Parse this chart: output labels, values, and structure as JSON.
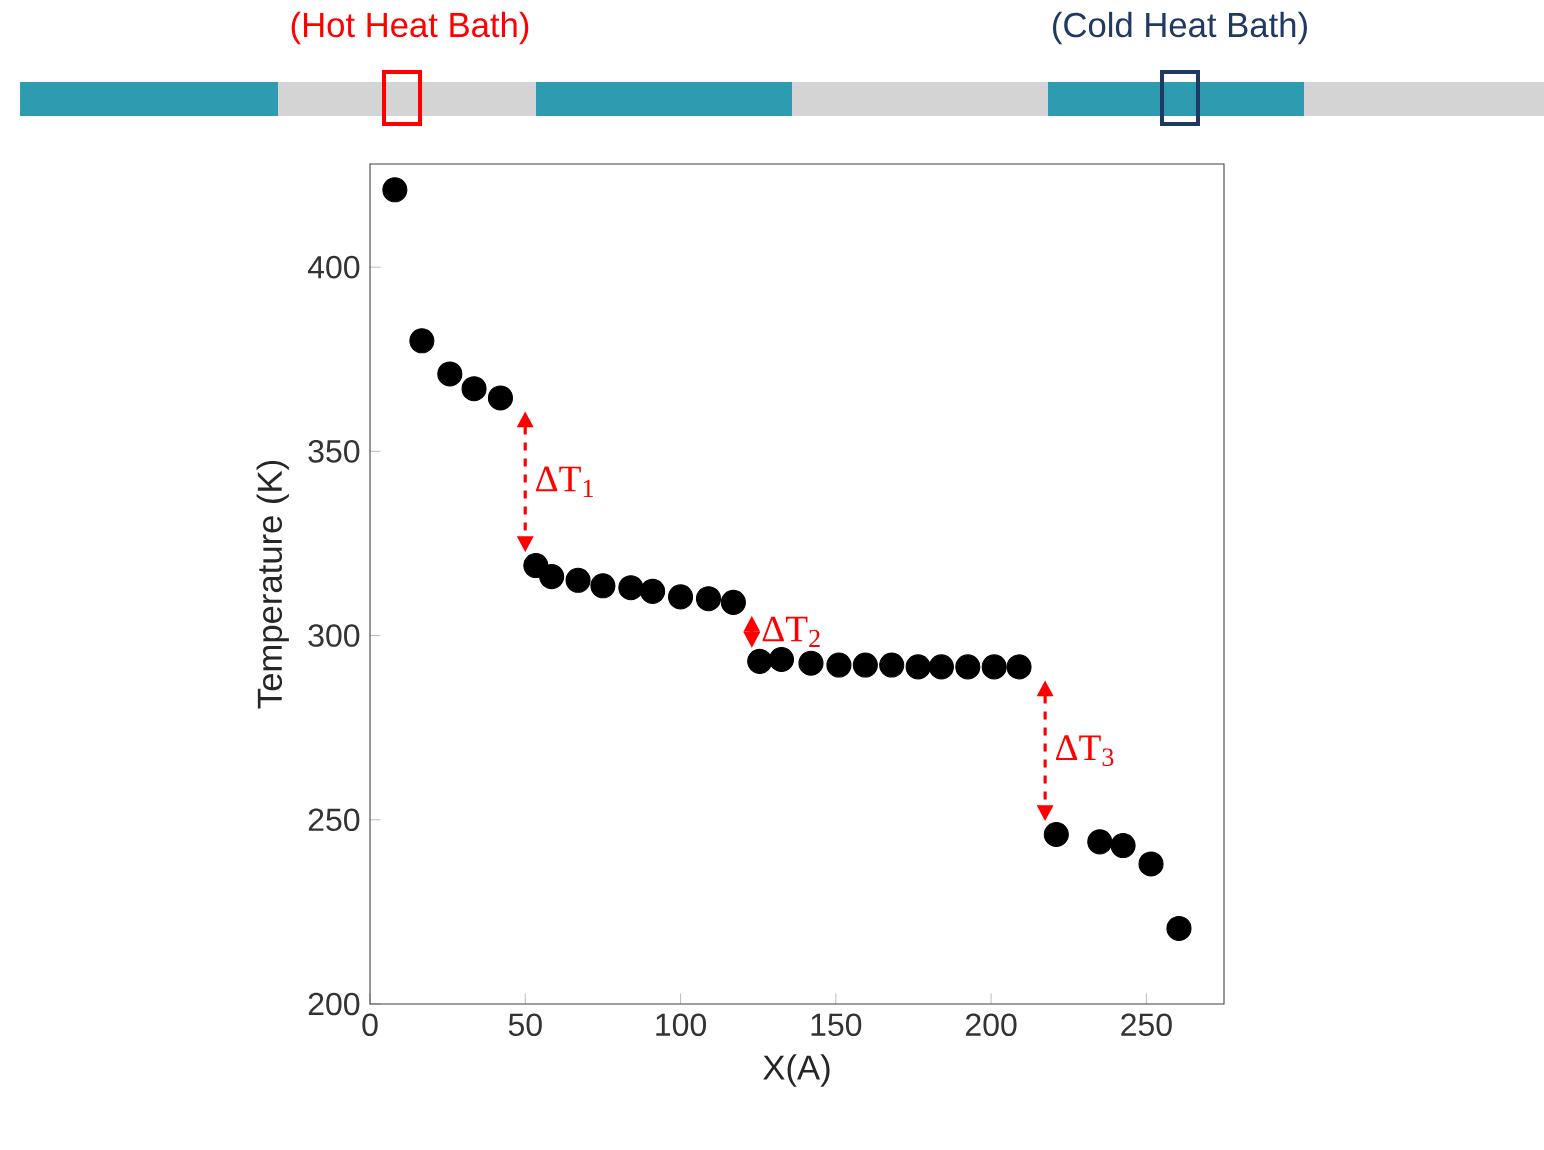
{
  "chart_data": {
    "type": "scatter",
    "xlabel": "X(A)",
    "ylabel": "Temperature (K)",
    "xlim": [
      0,
      275
    ],
    "ylim": [
      200,
      428
    ],
    "xticks": [
      0,
      50,
      100,
      150,
      200,
      250
    ],
    "yticks": [
      200,
      250,
      300,
      350,
      400
    ],
    "grid": false,
    "series": [
      {
        "color": "#000000",
        "x": [
          8,
          16.7,
          25.7,
          33.5,
          42,
          53.4,
          58.5,
          67,
          75,
          84,
          91,
          100,
          109,
          117,
          125.5,
          132.5,
          142,
          151,
          159.5,
          168,
          176.5,
          184,
          192.5,
          201,
          209,
          221,
          235,
          242.5,
          251.5,
          260.5
        ],
        "values": [
          421,
          380,
          371,
          367,
          364.5,
          319,
          316,
          315,
          313.5,
          313,
          312,
          310.5,
          310,
          309,
          293,
          293.5,
          292.5,
          292,
          292,
          292,
          291.5,
          291.5,
          291.5,
          291.5,
          291.5,
          246,
          244,
          243,
          238,
          220.5
        ]
      }
    ],
    "annotations": [
      "(Hot Heat Bath)",
      "(Cold Heat Bath)",
      {
        "text": "ΔT$_{1}$",
        "x": 53.4,
        "y": 319
      },
      {
        "text": "ΔT$_{2}$",
        "x": 125.5,
        "y": 293
      },
      {
        "text": "ΔT$_{3}$",
        "x": 221,
        "y": 246
      }
    ]
  }
}
